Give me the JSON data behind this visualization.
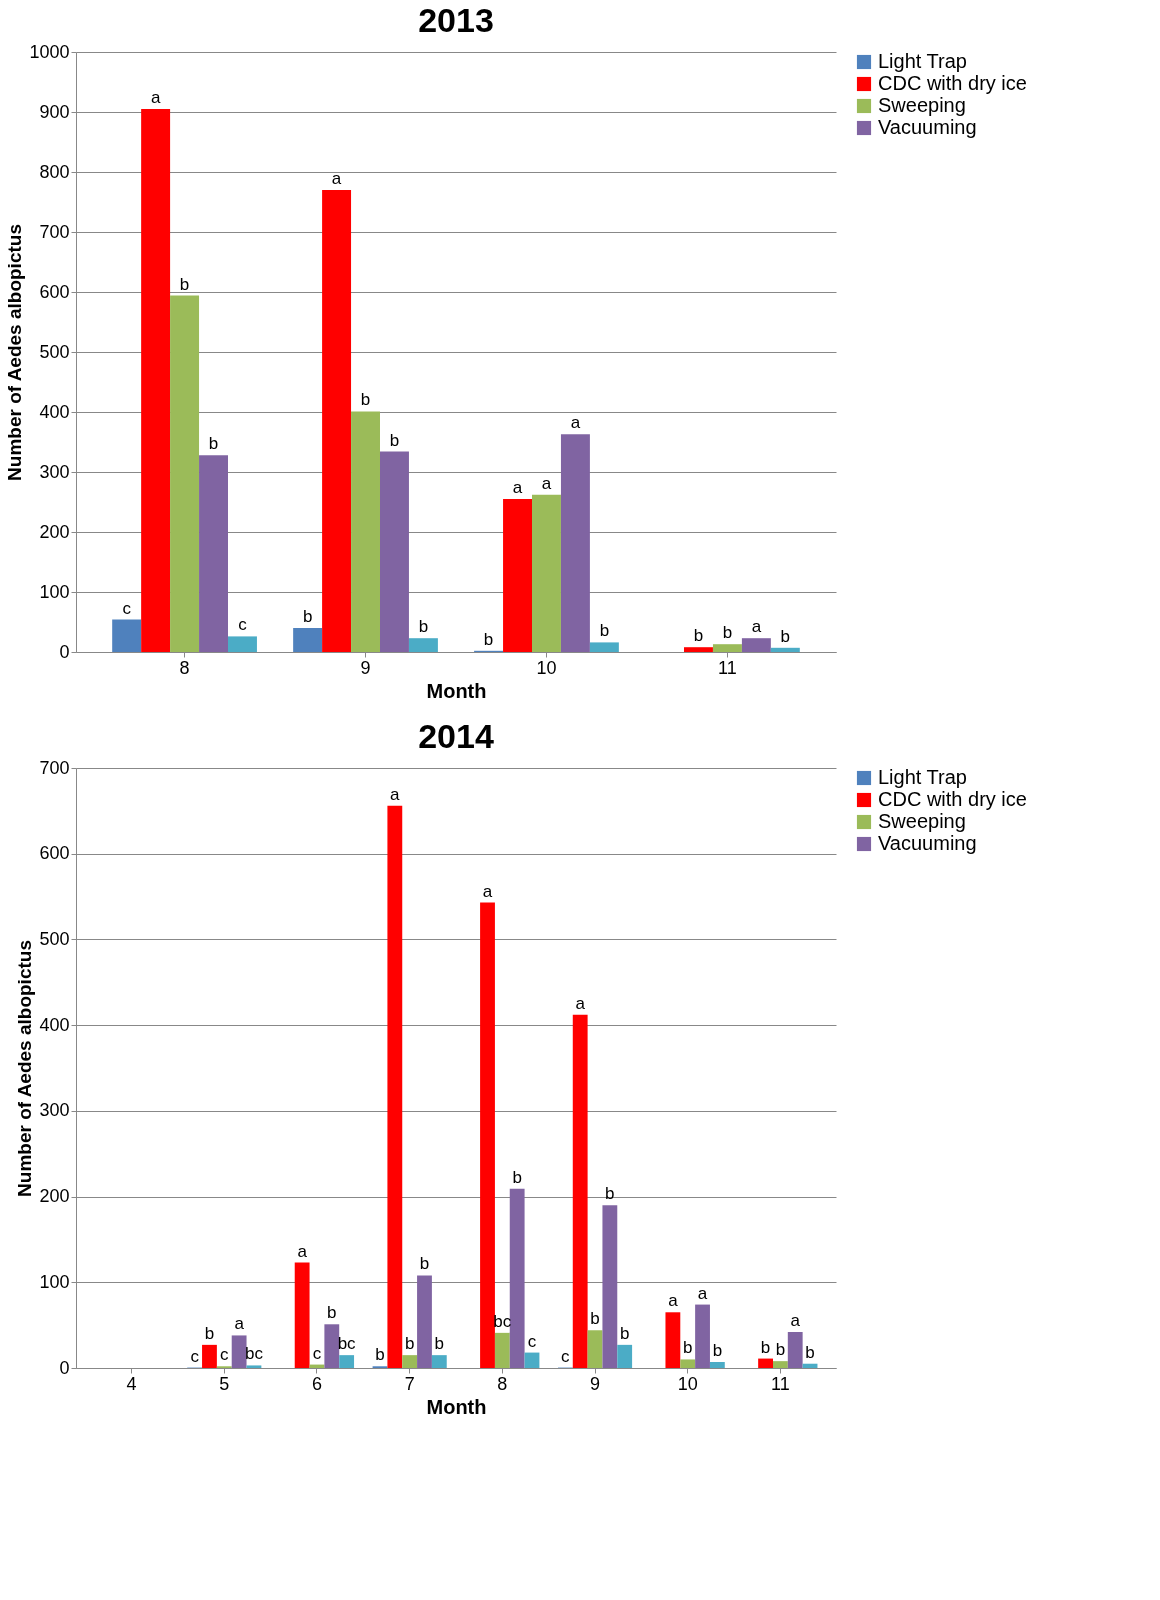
{
  "chart_data": [
    {
      "type": "bar",
      "title": "2013",
      "xlabel": "Month",
      "ylabel": "Number of Aedes albopictus",
      "categories": [
        "8",
        "9",
        "10",
        "11"
      ],
      "series": [
        {
          "name": "Light Trap",
          "color": "#4f81bd",
          "values": [
            54,
            40,
            2,
            0
          ],
          "value_labels": [
            "c",
            "b",
            "b",
            null
          ]
        },
        {
          "name": "CDC with dry ice",
          "color": "#ff0000",
          "values": [
            905,
            770,
            255,
            8
          ],
          "value_labels": [
            "a",
            "a",
            "a",
            "b"
          ]
        },
        {
          "name": "Sweeping",
          "color": "#9bbb59",
          "values": [
            594,
            401,
            262,
            13
          ],
          "value_labels": [
            "b",
            "b",
            "a",
            "b"
          ]
        },
        {
          "name": "Vacuuming",
          "color": "#8064a2",
          "values": [
            328,
            334,
            363,
            23
          ],
          "value_labels": [
            "b",
            "b",
            "a",
            "a"
          ]
        },
        {
          "color": "#4bacc6",
          "values": [
            26,
            23,
            16,
            7
          ],
          "value_labels": [
            "c",
            "b",
            "b",
            "b"
          ]
        }
      ],
      "ylim": [
        0,
        1000
      ],
      "yticks": [
        0,
        100,
        200,
        300,
        400,
        500,
        600,
        700,
        800,
        900,
        1000
      ],
      "grid": "y",
      "legend": "right"
    },
    {
      "type": "bar",
      "title": "2014",
      "xlabel": "Month",
      "ylabel": "Number of Aedes albopictus",
      "categories": [
        "4",
        "5",
        "6",
        "7",
        "8",
        "9",
        "10",
        "11"
      ],
      "series": [
        {
          "name": "Light Trap",
          "color": "#4f81bd",
          "values": [
            null,
            0.5,
            0,
            2,
            0,
            0.5,
            0,
            0
          ],
          "value_labels": [
            null,
            "c",
            null,
            "b",
            null,
            "c",
            null,
            null
          ]
        },
        {
          "name": "CDC with dry ice",
          "color": "#ff0000",
          "values": [
            0,
            27,
            123,
            656,
            543,
            412,
            65,
            11
          ],
          "value_labels": [
            null,
            "b",
            "a",
            "a",
            "a",
            "a",
            "a",
            "b"
          ]
        },
        {
          "name": "Sweeping",
          "color": "#9bbb59",
          "values": [
            0,
            2,
            4,
            15,
            41,
            44,
            10,
            8
          ],
          "value_labels": [
            null,
            "c",
            "c",
            "b",
            "bc",
            "b",
            "b",
            "b"
          ]
        },
        {
          "name": "Vacuuming",
          "color": "#8064a2",
          "values": [
            0,
            38,
            51,
            108,
            209,
            190,
            74,
            42
          ],
          "value_labels": [
            null,
            "a",
            "b",
            "b",
            "b",
            "b",
            "a",
            "a"
          ]
        },
        {
          "color": "#4bacc6",
          "values": [
            0,
            3,
            15,
            15,
            18,
            27,
            7,
            5
          ],
          "value_labels": [
            null,
            "bc",
            "bc",
            "b",
            "c",
            "b",
            "b",
            "b"
          ]
        }
      ],
      "ylim": [
        0,
        700
      ],
      "yticks": [
        0,
        100,
        200,
        300,
        400,
        500,
        600,
        700
      ],
      "grid": "y",
      "legend": "right"
    }
  ]
}
